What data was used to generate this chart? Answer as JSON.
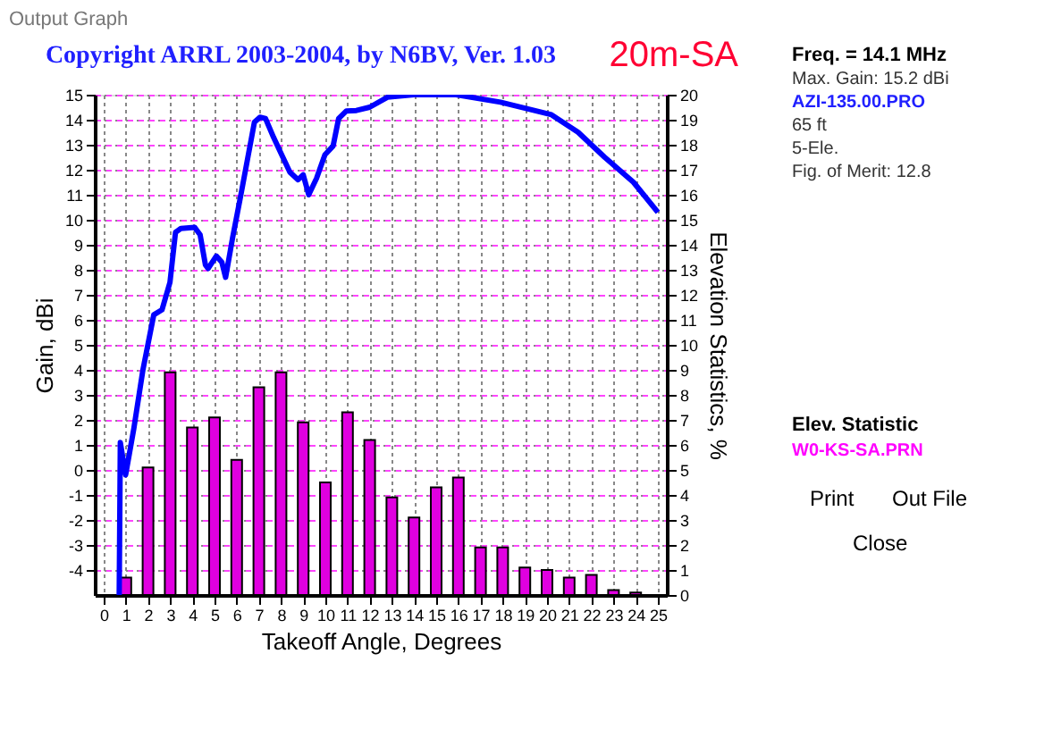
{
  "chart_data": {
    "type": "line",
    "title": "Copyright ARRL 2003-2004, by N6BV, Ver. 1.03",
    "subtitle": "20m-SA",
    "xlabel": "Takeoff Angle, Degrees",
    "ylabel": "Gain, dBi",
    "y2label": "Elevation Statistics, %",
    "xlim": [
      0,
      25
    ],
    "xticks": [
      0,
      1,
      2,
      3,
      4,
      5,
      6,
      7,
      8,
      9,
      10,
      11,
      12,
      13,
      14,
      15,
      16,
      17,
      18,
      19,
      20,
      21,
      22,
      23,
      24,
      25
    ],
    "ylim": [
      -5,
      15
    ],
    "yticks": [
      -4,
      -3,
      -2,
      -1,
      0,
      1,
      2,
      3,
      4,
      5,
      6,
      7,
      8,
      9,
      10,
      11,
      12,
      13,
      14,
      15
    ],
    "y2lim": [
      0,
      20
    ],
    "y2ticks": [
      0,
      1,
      2,
      3,
      4,
      5,
      6,
      7,
      8,
      9,
      10,
      11,
      12,
      13,
      14,
      15,
      16,
      17,
      18,
      19,
      20
    ],
    "grid": true,
    "legend": false,
    "series": [
      {
        "color": "#0000ff",
        "x": [
          0.7,
          0.75,
          0.99,
          1.36,
          1.77,
          2.26,
          2.63,
          2.99,
          3.24,
          3.48,
          4.1,
          4.35,
          4.59,
          4.71,
          5.08,
          5.33,
          5.5,
          5.82,
          6.19,
          6.8,
          7.05,
          7.3,
          7.66,
          8.03,
          8.4,
          8.77,
          9.0,
          9.25,
          9.6,
          9.98,
          10.35,
          10.6,
          10.95,
          11.4,
          12.0,
          12.8,
          14.0,
          15.9,
          17.9,
          19.3,
          20.2,
          21.4,
          22.6,
          23.9,
          25.0
        ],
        "values": [
          -5,
          1.1,
          -0.2,
          1.65,
          4.0,
          6.2,
          6.4,
          7.5,
          9.5,
          9.65,
          9.7,
          9.4,
          8.2,
          8.05,
          8.55,
          8.3,
          7.7,
          9.3,
          11.0,
          13.9,
          14.1,
          14.05,
          13.3,
          12.6,
          11.9,
          11.6,
          11.8,
          11.0,
          11.65,
          12.6,
          12.95,
          14.05,
          14.35,
          14.37,
          14.5,
          14.9,
          15.0,
          15.0,
          14.7,
          14.4,
          14.2,
          13.5,
          12.5,
          11.5,
          10.3
        ]
      },
      {
        "type": "bar",
        "axis": "y2",
        "color": "#e000e0",
        "x": [
          1,
          2,
          3,
          4,
          5,
          6,
          7,
          8,
          9,
          10,
          11,
          12,
          13,
          14,
          15,
          16,
          17,
          18,
          19,
          20,
          21,
          22,
          23,
          24
        ],
        "values": [
          0.7,
          5.1,
          8.9,
          6.7,
          7.1,
          5.4,
          8.3,
          8.9,
          6.9,
          4.5,
          7.3,
          6.2,
          3.9,
          3.1,
          4.3,
          4.7,
          1.9,
          1.9,
          1.1,
          1.0,
          0.7,
          0.8,
          0.2,
          0.1
        ]
      }
    ],
    "annotations": [
      "Output Graph",
      "Freq. = 14.1 MHz",
      "Max. Gain: 15.2 dBi",
      "AZI-135.00.PRO",
      "65 ft",
      "5-Ele.",
      "Fig. of Merit: 12.8",
      "Elev. Statistic",
      "W0-KS-SA.PRN",
      "Print",
      "Out File",
      "Close"
    ]
  }
}
